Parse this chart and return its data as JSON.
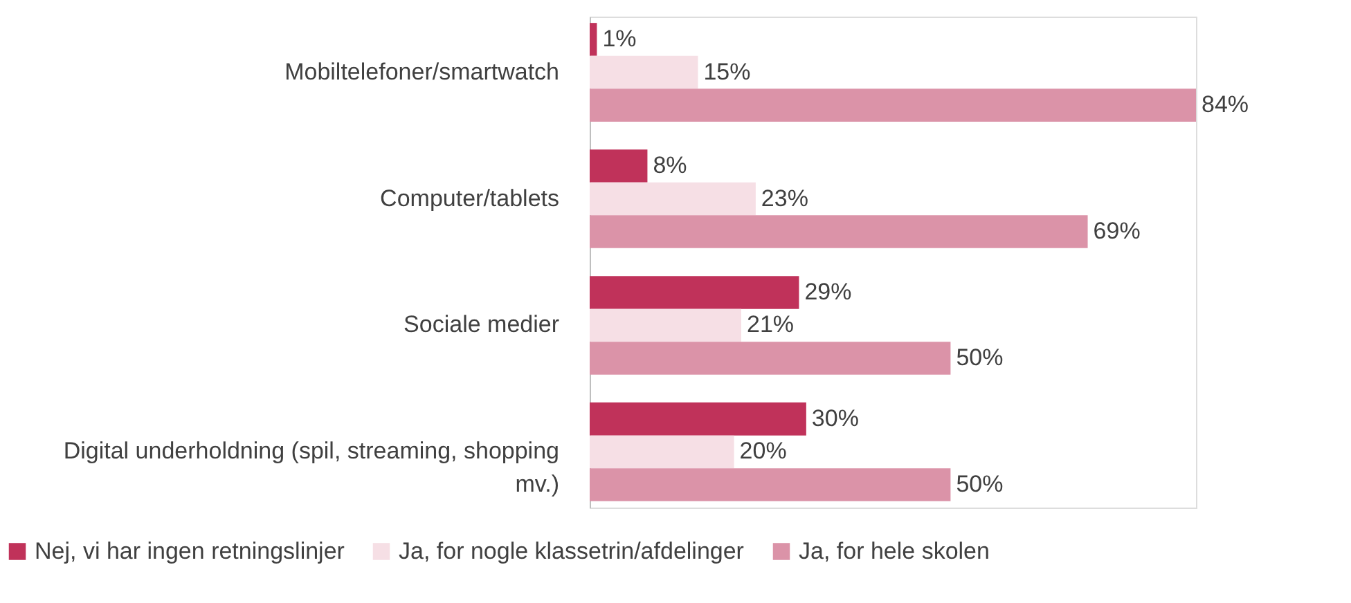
{
  "chart_data": {
    "type": "bar",
    "orientation": "horizontal",
    "categories": [
      "Mobiltelefoner/smartwatch",
      "Computer/tablets",
      "Sociale medier",
      "Digital underholdning (spil, streaming, shopping mv.)"
    ],
    "series": [
      {
        "name": "Nej, vi har ingen retningslinjer",
        "color": "#c0325a",
        "values": [
          1,
          8,
          29,
          30
        ],
        "value_labels": [
          "1%",
          "8%",
          "29%",
          "30%"
        ]
      },
      {
        "name": "Ja, for nogle klassetrin/afdelinger",
        "color": "#f6dfe5",
        "values": [
          15,
          23,
          21,
          20
        ],
        "value_labels": [
          "15%",
          "23%",
          "21%",
          "20%"
        ]
      },
      {
        "name": "Ja, for hele skolen",
        "color": "#db93a8",
        "values": [
          84,
          69,
          50,
          50
        ],
        "value_labels": [
          "84%",
          "69%",
          "50%",
          "50%"
        ]
      }
    ],
    "legend": "bottom"
  }
}
